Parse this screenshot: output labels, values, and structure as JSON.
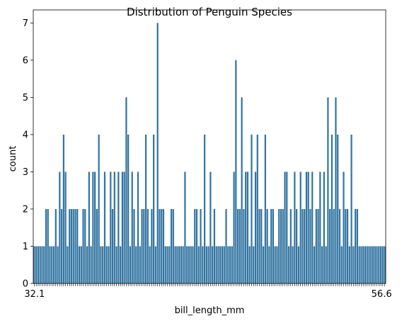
{
  "chart_data": {
    "type": "bar",
    "title": "Distribution of Penguin Species",
    "xlabel": "bill_length_mm",
    "ylabel": "count",
    "ylim": [
      0,
      7.35
    ],
    "yticks": [
      0,
      1,
      2,
      3,
      4,
      5,
      6,
      7
    ],
    "bar_color": "#3274a1",
    "x_tick_labels_visible": [
      "32.1",
      "56.6"
    ],
    "values": [
      1,
      1,
      1,
      1,
      1,
      1,
      2,
      2,
      1,
      1,
      1,
      2,
      1,
      3,
      2,
      4,
      3,
      1,
      2,
      2,
      2,
      2,
      2,
      1,
      1,
      2,
      2,
      1,
      3,
      1,
      3,
      3,
      2,
      4,
      1,
      1,
      3,
      1,
      1,
      3,
      2,
      3,
      1,
      3,
      1,
      3,
      3,
      5,
      4,
      1,
      3,
      2,
      1,
      3,
      1,
      2,
      2,
      4,
      2,
      1,
      2,
      4,
      1,
      7,
      2,
      2,
      2,
      1,
      1,
      1,
      2,
      2,
      1,
      1,
      1,
      1,
      1,
      3,
      1,
      1,
      1,
      1,
      2,
      2,
      1,
      2,
      1,
      4,
      1,
      1,
      3,
      1,
      2,
      1,
      1,
      1,
      1,
      1,
      2,
      1,
      1,
      1,
      3,
      6,
      2,
      2,
      5,
      2,
      3,
      3,
      1,
      4,
      1,
      3,
      4,
      2,
      2,
      1,
      4,
      2,
      1,
      2,
      2,
      1,
      1,
      2,
      2,
      2,
      3,
      3,
      1,
      2,
      1,
      3,
      2,
      1,
      3,
      2,
      2,
      3,
      3,
      2,
      3,
      1,
      2,
      2,
      3,
      1,
      3,
      1,
      5,
      2,
      4,
      2,
      5,
      4,
      2,
      1,
      3,
      2,
      2,
      1,
      4,
      1,
      2,
      2,
      1,
      1,
      1,
      1,
      1,
      1,
      1,
      1,
      1,
      1,
      1,
      1,
      1,
      1
    ]
  }
}
